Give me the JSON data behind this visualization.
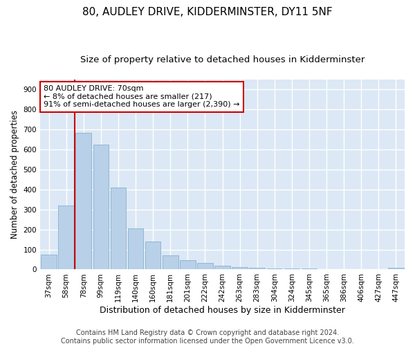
{
  "title": "80, AUDLEY DRIVE, KIDDERMINSTER, DY11 5NF",
  "subtitle": "Size of property relative to detached houses in Kidderminster",
  "xlabel": "Distribution of detached houses by size in Kidderminster",
  "ylabel": "Number of detached properties",
  "footer1": "Contains HM Land Registry data © Crown copyright and database right 2024.",
  "footer2": "Contains public sector information licensed under the Open Government Licence v3.0.",
  "categories": [
    "37sqm",
    "58sqm",
    "78sqm",
    "99sqm",
    "119sqm",
    "140sqm",
    "160sqm",
    "181sqm",
    "201sqm",
    "222sqm",
    "242sqm",
    "263sqm",
    "283sqm",
    "304sqm",
    "324sqm",
    "345sqm",
    "365sqm",
    "386sqm",
    "406sqm",
    "427sqm",
    "447sqm"
  ],
  "values": [
    75,
    320,
    685,
    625,
    410,
    205,
    140,
    70,
    45,
    33,
    20,
    12,
    10,
    5,
    5,
    5,
    2,
    0,
    0,
    0,
    8
  ],
  "bar_color": "#b8d0e8",
  "bar_edge_color": "#7aaac8",
  "annotation_text_line1": "80 AUDLEY DRIVE: 70sqm",
  "annotation_text_line2": "← 8% of detached houses are smaller (217)",
  "annotation_text_line3": "91% of semi-detached houses are larger (2,390) →",
  "annotation_box_color": "#ffffff",
  "annotation_box_edge_color": "#cc0000",
  "vline_color": "#cc0000",
  "vline_x_bar_index": 1.5,
  "ylim": [
    0,
    950
  ],
  "yticks": [
    0,
    100,
    200,
    300,
    400,
    500,
    600,
    700,
    800,
    900
  ],
  "fig_bg_color": "#ffffff",
  "plot_bg_color": "#dce8f5",
  "grid_color": "#ffffff",
  "title_fontsize": 11,
  "subtitle_fontsize": 9.5,
  "xlabel_fontsize": 9,
  "ylabel_fontsize": 8.5,
  "tick_fontsize": 7.5,
  "footer_fontsize": 7
}
